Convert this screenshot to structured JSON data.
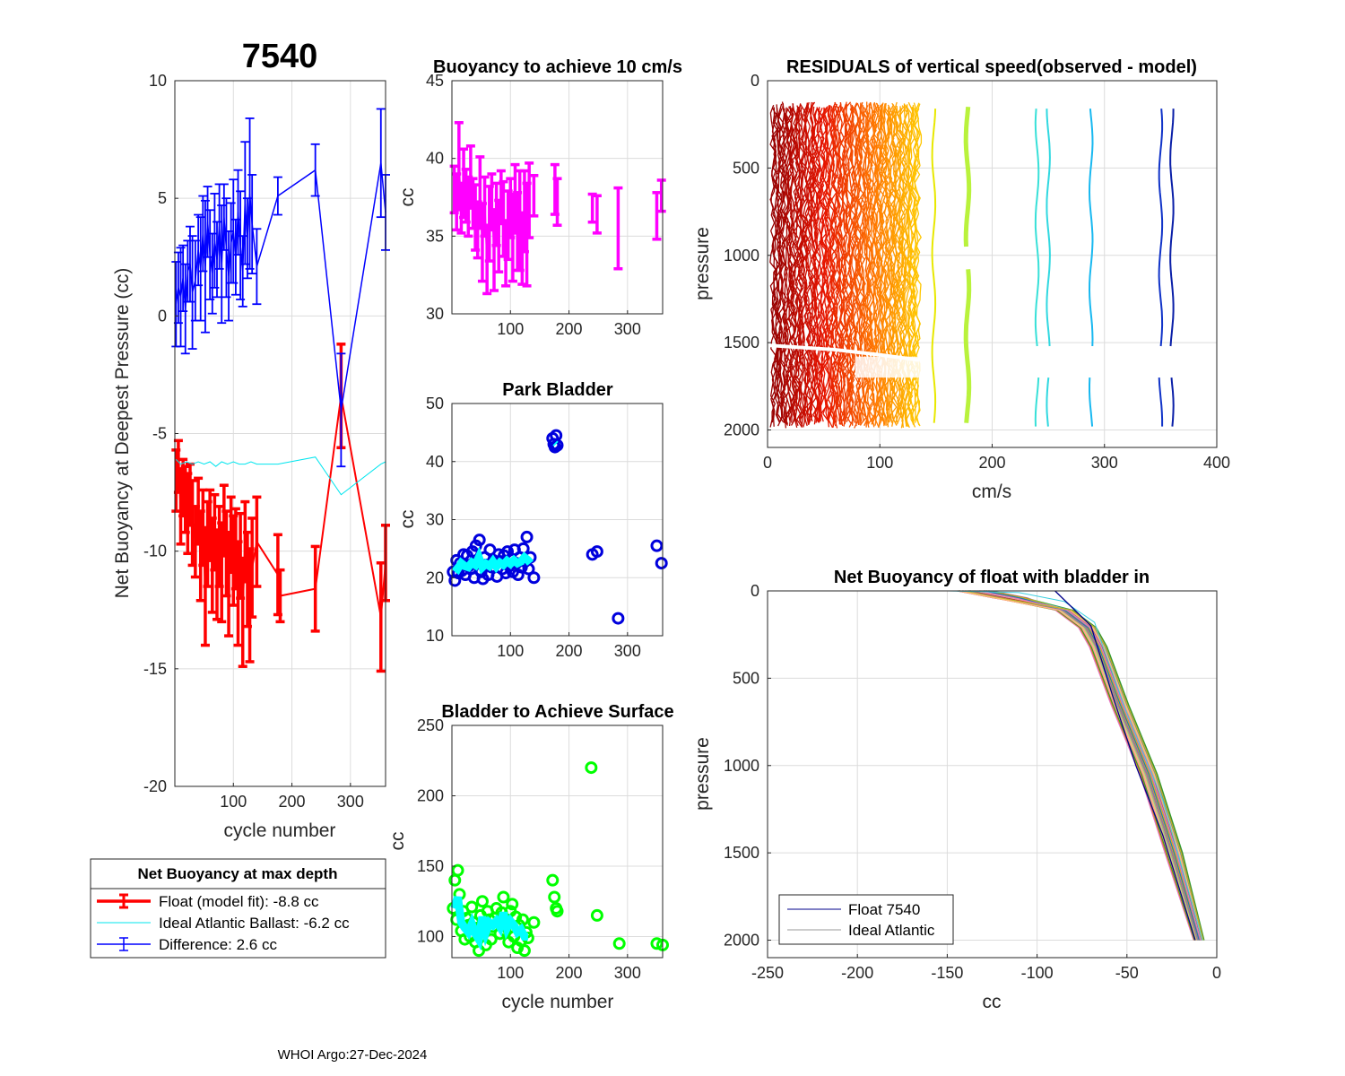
{
  "footer": "WHOI Argo:27-Dec-2024",
  "chart_data": [
    {
      "id": "net",
      "type": "errorbar",
      "title": "7540",
      "xlabel": "cycle number",
      "ylabel": "Net Buoyancy at Deepest Pressure (cc)",
      "xlim": [
        0,
        360
      ],
      "ylim": [
        -20,
        10
      ],
      "xticks": [
        100,
        200,
        300
      ],
      "yticks": [
        10,
        5,
        0,
        -5,
        -10,
        -15,
        -20
      ],
      "series": [
        {
          "name": "Difference",
          "color": "#0000ff",
          "x": [
            2,
            6,
            10,
            14,
            18,
            22,
            26,
            30,
            35,
            40,
            44,
            48,
            52,
            56,
            60,
            64,
            68,
            72,
            76,
            80,
            84,
            88,
            92,
            96,
            100,
            104,
            108,
            112,
            116,
            120,
            124,
            128,
            132,
            140,
            176,
            240,
            284,
            352,
            360
          ],
          "y": [
            0.5,
            1.2,
            0.8,
            1.6,
            0.3,
            1.9,
            2.2,
            1.0,
            1.5,
            2.8,
            2.0,
            3.5,
            2.1,
            4.0,
            2.6,
            1.8,
            3.2,
            2.4,
            3.8,
            2.2,
            4.2,
            2.9,
            1.7,
            3.1,
            3.6,
            2.5,
            4.4,
            3.0,
            1.9,
            4.8,
            3.3,
            5.2,
            3.9,
            2.1,
            5.1,
            6.2,
            -4.0,
            6.5,
            4.4
          ],
          "err": [
            1.8,
            1.5,
            2.1,
            1.4,
            1.9,
            1.3,
            1.6,
            2.4,
            1.7,
            1.5,
            2.2,
            1.6,
            2.8,
            1.5,
            1.9,
            1.7,
            2.0,
            1.6,
            1.8,
            2.5,
            1.4,
            2.1,
            1.9,
            1.7,
            2.2,
            1.6,
            1.8,
            2.3,
            1.5,
            2.6,
            1.7,
            3.2,
            2.1,
            1.6,
            0.8,
            1.1,
            2.4,
            2.3,
            1.6
          ]
        },
        {
          "name": "Float (model fit)",
          "color": "#ff0000",
          "x": [
            2,
            6,
            10,
            14,
            18,
            22,
            26,
            30,
            35,
            40,
            44,
            48,
            52,
            56,
            60,
            64,
            68,
            72,
            76,
            80,
            84,
            88,
            92,
            96,
            100,
            104,
            108,
            112,
            116,
            120,
            124,
            128,
            132,
            140,
            176,
            180,
            240,
            284,
            352,
            360
          ],
          "y": [
            -7.0,
            -6.4,
            -8.1,
            -7.3,
            -7.8,
            -8.4,
            -7.6,
            -8.8,
            -9.6,
            -8.3,
            -10.2,
            -9.0,
            -11.5,
            -9.7,
            -8.9,
            -10.6,
            -9.2,
            -11.0,
            -9.8,
            -10.9,
            -8.7,
            -10.1,
            -11.4,
            -9.3,
            -10.4,
            -9.9,
            -11.8,
            -10.2,
            -12.6,
            -9.6,
            -11.2,
            -12.3,
            -10.7,
            -9.6,
            -11.0,
            -11.9,
            -11.6,
            -3.4,
            -12.8,
            -10.5
          ],
          "err": [
            1.3,
            1.1,
            1.6,
            1.2,
            1.4,
            1.7,
            1.3,
            1.8,
            1.5,
            1.4,
            1.9,
            1.6,
            2.5,
            1.8,
            1.5,
            2.0,
            1.6,
            1.9,
            1.7,
            2.1,
            1.5,
            1.8,
            2.2,
            1.6,
            1.9,
            1.7,
            2.2,
            1.8,
            2.3,
            1.7,
            2.0,
            2.4,
            2.1,
            1.9,
            1.7,
            1.1,
            1.8,
            2.2,
            2.3,
            1.6
          ]
        },
        {
          "name": "Ideal Atlantic Ballast",
          "color": "#00e5ee",
          "x": [
            2,
            10,
            20,
            30,
            40,
            50,
            60,
            70,
            80,
            90,
            100,
            110,
            120,
            130,
            140,
            176,
            240,
            284,
            352,
            360
          ],
          "y": [
            -6.1,
            -6.3,
            -6.2,
            -6.3,
            -6.2,
            -6.3,
            -6.2,
            -6.4,
            -6.2,
            -6.3,
            -6.2,
            -6.3,
            -6.3,
            -6.2,
            -6.3,
            -6.3,
            -6.0,
            -7.6,
            -6.3,
            -6.2
          ]
        }
      ],
      "legend": {
        "title": "Net Buoyancy at max depth",
        "entries": [
          "Float (model fit):  -8.8 cc",
          "Ideal Atlantic Ballast:  -6.2 cc",
          "Difference:   2.6 cc"
        ]
      }
    },
    {
      "id": "b10",
      "type": "errorbar",
      "title": "Buoyancy to achieve 10 cm/s",
      "xlabel": "",
      "ylabel": "cc",
      "xlim": [
        0,
        360
      ],
      "ylim": [
        30,
        45
      ],
      "xticks": [
        100,
        200,
        300
      ],
      "yticks": [
        45,
        40,
        35,
        30
      ],
      "series": [
        {
          "name": "bladder",
          "color": "#ff00ff",
          "x": [
            4,
            8,
            12,
            16,
            20,
            24,
            28,
            32,
            36,
            40,
            44,
            48,
            52,
            56,
            60,
            64,
            68,
            72,
            76,
            80,
            84,
            88,
            92,
            96,
            100,
            104,
            108,
            112,
            116,
            120,
            124,
            128,
            132,
            140,
            176,
            180,
            240,
            248,
            284,
            350,
            358
          ],
          "y": [
            38.0,
            37.2,
            39.5,
            36.8,
            38.4,
            37.6,
            36.9,
            38.8,
            37.1,
            36.2,
            35.4,
            37.8,
            34.6,
            36.9,
            33.5,
            35.8,
            37.2,
            34.1,
            36.4,
            35.0,
            37.5,
            36.1,
            33.9,
            35.7,
            36.8,
            34.9,
            37.4,
            35.3,
            36.0,
            34.2,
            36.6,
            35.1,
            37.3,
            37.6,
            38.0,
            37.2,
            36.8,
            36.4,
            35.5,
            36.3,
            37.6
          ],
          "err": [
            1.5,
            1.8,
            2.8,
            1.6,
            2.2,
            1.7,
            1.9,
            2.0,
            1.6,
            2.1,
            1.8,
            2.3,
            2.5,
            1.9,
            2.2,
            2.4,
            1.8,
            2.6,
            2.0,
            2.3,
            1.7,
            2.4,
            2.1,
            2.2,
            1.9,
            2.8,
            2.2,
            2.5,
            3.2,
            2.3,
            2.6,
            3.3,
            2.4,
            1.3,
            1.6,
            1.5,
            0.9,
            1.2,
            2.6,
            1.5,
            1.0
          ]
        }
      ]
    },
    {
      "id": "park",
      "type": "scatter",
      "title": "Park Bladder",
      "xlabel": "",
      "ylabel": "cc",
      "xlim": [
        0,
        360
      ],
      "ylim": [
        10,
        50
      ],
      "xticks": [
        100,
        200,
        300
      ],
      "yticks": [
        50,
        40,
        30,
        20,
        10
      ],
      "series": [
        {
          "name": "park",
          "color": "#0000dd",
          "x": [
            2,
            5,
            8,
            11,
            14,
            17,
            20,
            23,
            26,
            29,
            32,
            35,
            38,
            41,
            44,
            47,
            50,
            53,
            56,
            59,
            62,
            65,
            68,
            71,
            74,
            77,
            80,
            83,
            86,
            89,
            92,
            95,
            98,
            101,
            104,
            107,
            110,
            113,
            116,
            119,
            122,
            125,
            128,
            131,
            134,
            140,
            172,
            174,
            176,
            178,
            180,
            240,
            248,
            284,
            350,
            358
          ],
          "y": [
            21,
            19.5,
            23,
            20.8,
            22.5,
            21.2,
            24,
            20.5,
            23.8,
            22,
            21.5,
            24.5,
            20,
            25.5,
            22.8,
            26.5,
            21,
            19.8,
            23.5,
            22.2,
            20.5,
            24.8,
            21.8,
            23,
            22.5,
            20.2,
            24,
            22.8,
            21.5,
            23.8,
            20.8,
            24.5,
            22,
            23.2,
            21,
            24.8,
            22.5,
            20.5,
            23.5,
            21.8,
            25,
            22.8,
            27,
            21.5,
            23.5,
            20,
            44,
            43,
            42.5,
            44.5,
            42.8,
            24,
            24.5,
            13,
            25.5,
            22.5
          ]
        },
        {
          "name": "park-fit",
          "color": "#00ffff",
          "x": [
            4,
            10,
            16,
            22,
            28,
            34,
            40,
            46,
            52,
            58,
            64,
            70,
            76,
            82,
            88,
            94,
            100,
            106,
            112,
            118,
            124,
            130,
            134,
            176,
            178
          ],
          "y": [
            22,
            21.5,
            22.5,
            22,
            21.8,
            22.6,
            22.2,
            23.5,
            21.8,
            22.4,
            22,
            22.8,
            21.9,
            22.6,
            22.2,
            22.9,
            22.4,
            23,
            22.5,
            22.8,
            23.5,
            23,
            22.5,
            43.2,
            43
          ]
        }
      ]
    },
    {
      "id": "surf",
      "type": "scatter",
      "title": "Bladder to Achieve Surface",
      "xlabel": "cycle number",
      "ylabel": "cc",
      "xlim": [
        0,
        360
      ],
      "ylim": [
        85,
        250
      ],
      "xticks": [
        100,
        200,
        300
      ],
      "yticks": [
        250,
        200,
        150,
        100
      ],
      "series": [
        {
          "name": "surf",
          "color": "#00ff00",
          "x": [
            2,
            5,
            8,
            10,
            13,
            16,
            19,
            22,
            25,
            28,
            31,
            34,
            37,
            40,
            43,
            46,
            49,
            52,
            55,
            58,
            61,
            64,
            67,
            70,
            73,
            76,
            79,
            82,
            85,
            88,
            91,
            94,
            97,
            100,
            103,
            106,
            109,
            112,
            115,
            118,
            121,
            124,
            127,
            130,
            140,
            172,
            175,
            178,
            180,
            238,
            248,
            286,
            350,
            360
          ],
          "y": [
            120,
            140,
            112,
            147,
            130,
            104,
            118,
            98,
            113,
            108,
            100,
            121,
            110,
            96,
            106,
            90,
            115,
            125,
            103,
            94,
            118,
            112,
            98,
            107,
            113,
            120,
            110,
            102,
            117,
            128,
            104,
            112,
            96,
            118,
            123,
            100,
            114,
            92,
            108,
            97,
            112,
            90,
            103,
            99,
            110,
            140,
            128,
            120,
            118,
            220,
            115,
            95,
            95,
            94
          ]
        },
        {
          "name": "surf-fit",
          "color": "#00ffff",
          "x": [
            4,
            10,
            16,
            22,
            28,
            34,
            40,
            46,
            52,
            58,
            64,
            70,
            76,
            82,
            88,
            94,
            100,
            106,
            112,
            118,
            124,
            130
          ],
          "y": [
            120,
            128,
            110,
            106,
            103,
            109,
            102,
            98,
            114,
            103,
            110,
            108,
            111,
            107,
            117,
            106,
            111,
            108,
            103,
            105,
            100,
            100
          ]
        }
      ]
    },
    {
      "id": "resid",
      "type": "line",
      "title": "RESIDUALS of vertical speed(observed - model)",
      "xlabel": "cm/s",
      "ylabel": "pressure",
      "xlim": [
        0,
        400
      ],
      "ylim": [
        0,
        2100
      ],
      "yreversed": true,
      "xticks": [
        0,
        100,
        200,
        300,
        400
      ],
      "yticks": [
        0,
        500,
        1000,
        1500,
        2000
      ],
      "series": [
        {
          "name": "profiles",
          "colormap": "red-to-yellow",
          "offsets": [
            148,
            178,
            240,
            250,
            288,
            350,
            360
          ],
          "colors": [
            "#e8e800",
            "#b9f23c",
            "#38e0d8",
            "#30d8e0",
            "#18b8f0",
            "#1033c8",
            "#0a1fa8"
          ]
        }
      ]
    },
    {
      "id": "netb",
      "type": "line",
      "title": "Net Buoyancy of float with bladder in",
      "xlabel": "cc",
      "ylabel": "pressure",
      "xlim": [
        -250,
        0
      ],
      "ylim": [
        0,
        2100
      ],
      "yreversed": true,
      "xticks": [
        -250,
        -200,
        -150,
        -100,
        -50,
        0
      ],
      "yticks": [
        0,
        500,
        1000,
        1500,
        2000
      ],
      "series": [
        {
          "name": "Float 7540",
          "color": "#00008b",
          "x": [
            -90,
            -80,
            -70,
            -67,
            -58,
            -45,
            -30,
            -12
          ],
          "p": [
            0,
            100,
            200,
            300,
            600,
            1000,
            1400,
            2000
          ]
        },
        {
          "name": "Ideal Atlantic",
          "color": "#999999",
          "x": [
            -220,
            -150,
            -110,
            -85,
            -68,
            -64,
            -50,
            -30,
            -8
          ],
          "p": [
            0,
            0,
            10,
            60,
            180,
            300,
            700,
            1200,
            2000
          ]
        }
      ],
      "legend": {
        "entries": [
          "Float 7540",
          "Ideal Atlantic"
        ]
      }
    }
  ]
}
